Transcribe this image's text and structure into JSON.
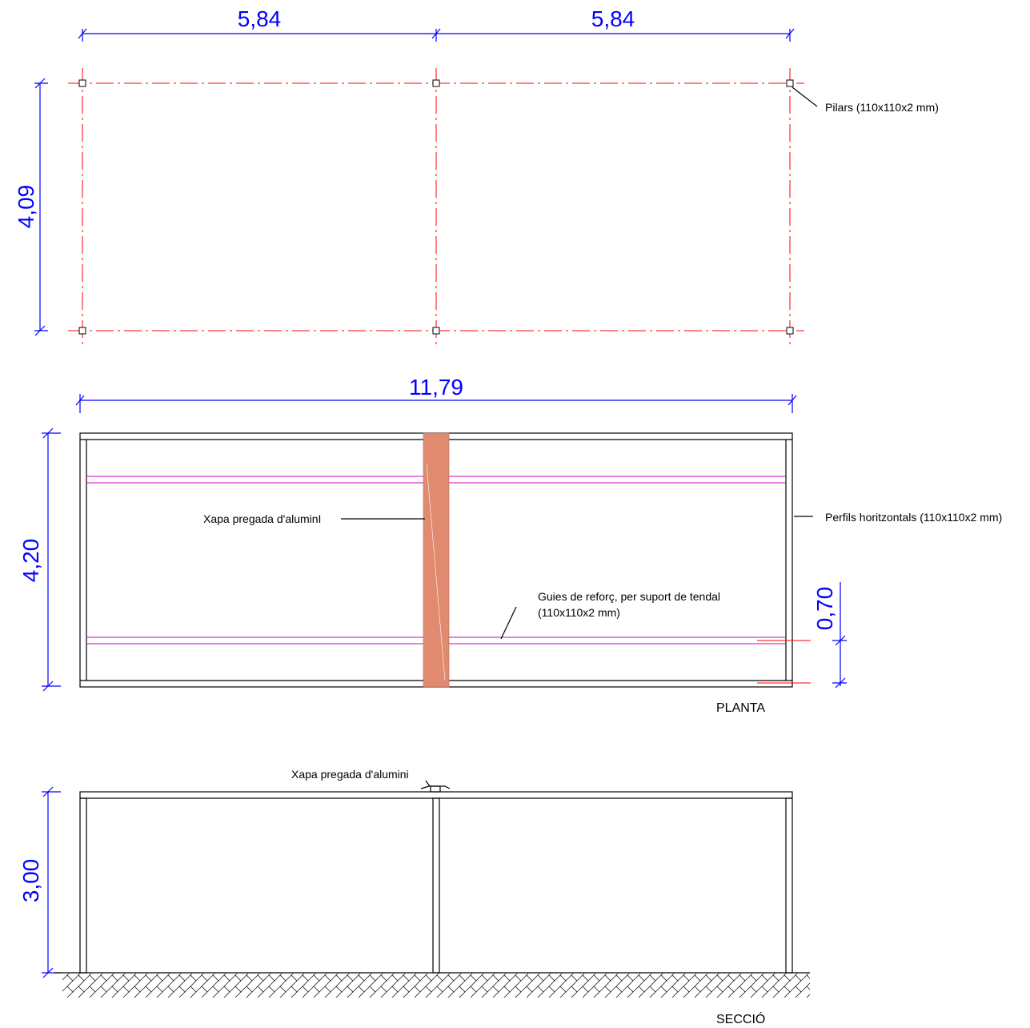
{
  "plan_top": {
    "dim_left_span": "5,84",
    "dim_right_span": "5,84",
    "dim_depth": "4,09",
    "label_pillars": "Pilars (110x110x2 mm)"
  },
  "plan": {
    "dim_total_length": "11,79",
    "dim_depth": "4,20",
    "dim_guide_offset": "0,70",
    "label_sheet": "Xapa pregada d'aluminI",
    "label_profiles": "Perfils horitzontals (110x110x2 mm)",
    "label_guides_line1": "Guies de reforç, per suport de tendal",
    "label_guides_line2": "(110x110x2 mm)",
    "title": "PLANTA"
  },
  "section": {
    "dim_height": "3,00",
    "label_sheet": "Xapa pregada d'alumini",
    "title": "SECCIÓ"
  },
  "colors": {
    "dimension": "#0000ff",
    "axis": "#ff0000",
    "guides": "#cc00cc",
    "sheet": "#e08a70"
  }
}
